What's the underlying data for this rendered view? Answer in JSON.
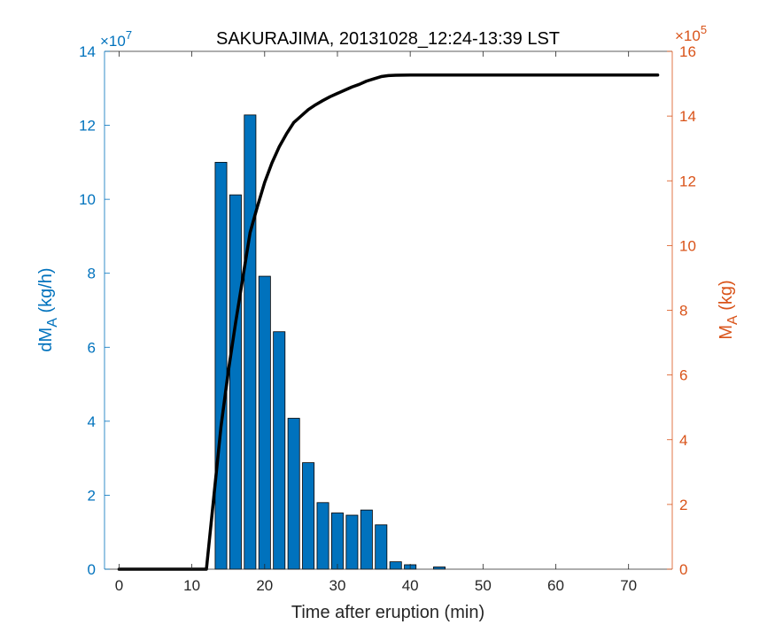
{
  "chart_data": {
    "type": "bar+line",
    "title": "SAKURAJIMA, 20131028_12:24-13:39 LST",
    "xlabel": "Time after eruption (min)",
    "xlim": [
      -2,
      76
    ],
    "xticks": [
      0,
      10,
      20,
      30,
      40,
      50,
      60,
      70
    ],
    "left_axis": {
      "label_main": "dM",
      "label_sub": "A",
      "label_unit": " (kg/h)",
      "ylim": [
        0,
        14
      ],
      "ticks": [
        0,
        2,
        4,
        6,
        8,
        10,
        12,
        14
      ],
      "exponent_text": "×10",
      "exponent_power": "7",
      "color": "#0072BD"
    },
    "right_axis": {
      "label_main": "M",
      "label_sub": "A",
      "label_unit": " (kg)",
      "ylim": [
        0,
        16
      ],
      "ticks": [
        0,
        2,
        4,
        6,
        8,
        10,
        12,
        14,
        16
      ],
      "exponent_text": "×10",
      "exponent_power": "5",
      "color": "#D95319"
    },
    "bars": {
      "color": "#0072BD",
      "width": 1.6,
      "x": [
        14,
        16,
        18,
        20,
        22,
        24,
        26,
        28,
        30,
        32,
        34,
        36,
        38,
        40,
        44
      ],
      "values": [
        11.0,
        10.12,
        12.28,
        7.92,
        6.42,
        4.08,
        2.88,
        1.8,
        1.52,
        1.46,
        1.6,
        1.2,
        0.2,
        0.12,
        0.06
      ]
    },
    "line": {
      "color": "#000000",
      "x": [
        0,
        12,
        13,
        14,
        15,
        16,
        17,
        18,
        19,
        20,
        21,
        22,
        23,
        24,
        25,
        26,
        27,
        28,
        29,
        30,
        31,
        32,
        33,
        34,
        35,
        36,
        37,
        38,
        40,
        44,
        50,
        60,
        70,
        74
      ],
      "values": [
        0,
        0,
        2.2,
        4.4,
        6.1,
        7.6,
        9.0,
        10.4,
        11.2,
        11.95,
        12.55,
        13.05,
        13.45,
        13.8,
        14.0,
        14.2,
        14.35,
        14.48,
        14.6,
        14.7,
        14.8,
        14.9,
        14.98,
        15.08,
        15.15,
        15.22,
        15.25,
        15.26,
        15.27,
        15.27,
        15.27,
        15.27,
        15.27,
        15.27
      ]
    }
  }
}
